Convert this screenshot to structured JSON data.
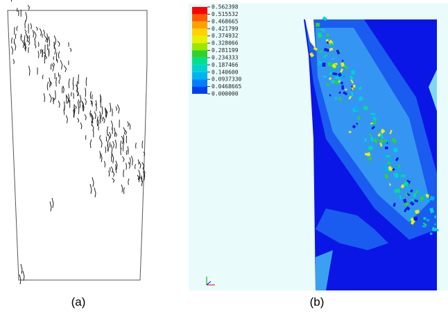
{
  "panels": [
    {
      "caption": "(a)"
    },
    {
      "caption": "(b)"
    }
  ],
  "legend": {
    "labels": [
      "0.562398",
      "0.515532",
      "0.468665",
      "0.421799",
      "0.374932",
      "0.328066",
      "0.281199",
      "0.234333",
      "0.187466",
      "0.140600",
      "0.0937330",
      "0.0468665",
      "0.000000"
    ],
    "colors": [
      "#ff0000",
      "#ff5a00",
      "#ffa000",
      "#ffd200",
      "#e8f000",
      "#9ee600",
      "#2ed22e",
      "#00e08c",
      "#00d2d2",
      "#00b4f0",
      "#0080ff",
      "#0040f0"
    ]
  }
}
